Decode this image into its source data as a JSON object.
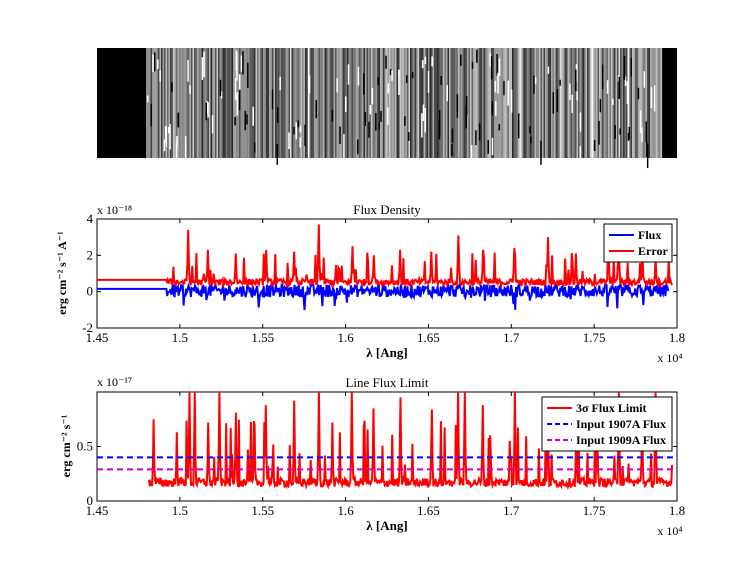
{
  "figure": {
    "image_panel": {
      "type": "2d-spectrum-image",
      "colormap": "grayscale"
    },
    "charts": [
      {
        "type": "line",
        "title": "Flux Density",
        "xlabel": "λ  [Ang]",
        "ylabel": "erg cm⁻² s⁻¹ A⁻¹",
        "x_multiplier": "x 10⁴",
        "y_multiplier": "x 10⁻¹⁸",
        "xlim": [
          1.45,
          1.8
        ],
        "ylim": [
          -2,
          4
        ],
        "x_ticks": [
          "1.45",
          "1.5",
          "1.55",
          "1.6",
          "1.65",
          "1.7",
          "1.75",
          "1.8"
        ],
        "y_ticks": [
          "-2",
          "0",
          "2",
          "4"
        ],
        "legend_position": "top-right",
        "series": [
          {
            "name": "Flux",
            "color": "#0000ff",
            "baseline": 0.15,
            "start": 1.45,
            "end": 1.795,
            "note_values": "noisy around 0 with dips to about -1.2 beyond 1.49"
          },
          {
            "name": "Error",
            "color": "#ff0000",
            "baseline": 0.65,
            "start": 1.45,
            "end": 1.797,
            "peaks": [
              [
                1.505,
                3.4
              ],
              [
                1.517,
                2.3
              ],
              [
                1.534,
                2.1
              ],
              [
                1.552,
                2.3
              ],
              [
                1.569,
                2.2
              ],
              [
                1.584,
                3.7
              ],
              [
                1.604,
                2.5
              ],
              [
                1.617,
                2.0
              ],
              [
                1.633,
                2.3
              ],
              [
                1.652,
                2.2
              ],
              [
                1.668,
                3.1
              ],
              [
                1.683,
                2.3
              ],
              [
                1.702,
                2.4
              ],
              [
                1.722,
                3.0
              ],
              [
                1.739,
                2.1
              ],
              [
                1.765,
                3.3
              ],
              [
                1.779,
                2.0
              ],
              [
                1.787,
                1.9
              ]
            ]
          }
        ]
      },
      {
        "type": "line",
        "title": "Line Flux Limit",
        "xlabel": "λ  [Ang]",
        "ylabel": "erg cm⁻² s⁻¹",
        "x_multiplier": "x 10⁴",
        "y_multiplier": "x 10⁻¹⁷",
        "xlim": [
          1.45,
          1.8
        ],
        "ylim": [
          0,
          1.0
        ],
        "x_ticks": [
          "1.45",
          "1.5",
          "1.55",
          "1.6",
          "1.65",
          "1.7",
          "1.75",
          "1.8"
        ],
        "y_ticks": [
          "0",
          "0.5"
        ],
        "legend_position": "top-right",
        "series": [
          {
            "name": "3σ Flux Limit",
            "color": "#ff0000",
            "style": "solid",
            "baseline": 0.13,
            "start": 1.481,
            "end": 1.797,
            "peaks": [
              [
                1.484,
                0.75
              ],
              [
                1.498,
                0.63
              ],
              [
                1.506,
                1.0
              ],
              [
                1.509,
                1.0
              ],
              [
                1.517,
                0.72
              ],
              [
                1.524,
                1.0
              ],
              [
                1.534,
                0.81
              ],
              [
                1.545,
                0.7
              ],
              [
                1.552,
                0.88
              ],
              [
                1.569,
                0.92
              ],
              [
                1.584,
                1.0
              ],
              [
                1.592,
                0.72
              ],
              [
                1.604,
                1.0
              ],
              [
                1.617,
                0.85
              ],
              [
                1.633,
                0.95
              ],
              [
                1.652,
                0.84
              ],
              [
                1.668,
                1.0
              ],
              [
                1.672,
                1.0
              ],
              [
                1.683,
                0.88
              ],
              [
                1.702,
                1.0
              ],
              [
                1.722,
                0.93
              ],
              [
                1.739,
                0.71
              ],
              [
                1.752,
                0.7
              ],
              [
                1.765,
                1.0
              ],
              [
                1.779,
                0.8
              ],
              [
                1.787,
                1.0
              ]
            ]
          },
          {
            "name": "Input 1907A Flux",
            "color": "#0000ff",
            "style": "dashed",
            "value": 0.4
          },
          {
            "name": "Input 1909A Flux",
            "color": "#cc00cc",
            "style": "dashed",
            "value": 0.29
          }
        ]
      }
    ]
  }
}
